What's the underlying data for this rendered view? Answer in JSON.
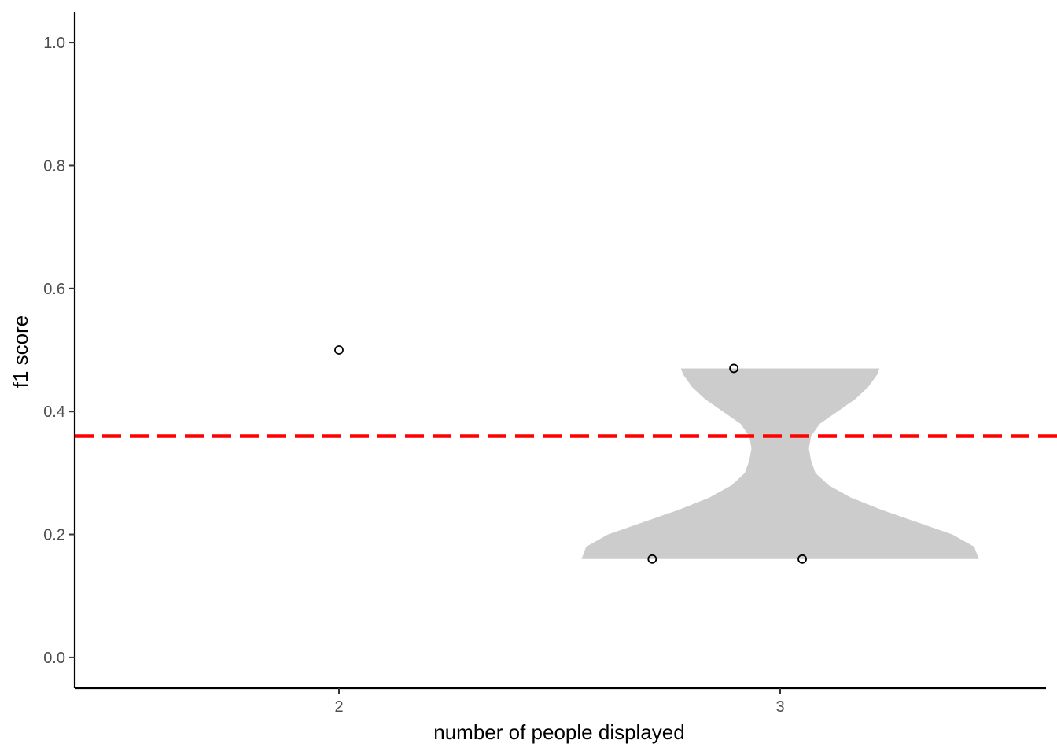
{
  "chart_data": {
    "type": "violin",
    "title": "",
    "xlabel": "number of people displayed",
    "ylabel": "f1 score",
    "x_categories": [
      "2",
      "3"
    ],
    "y_ticks": [
      "0.0",
      "0.2",
      "0.4",
      "0.6",
      "0.8",
      "1.0"
    ],
    "ylim": [
      -0.05,
      1.05
    ],
    "grid": false,
    "legend": "none",
    "reference_line": {
      "y": 0.36,
      "style": "dashed",
      "color": "#ff0000"
    },
    "violins": [
      {
        "category": "3",
        "fill": "#cccccc",
        "y_min": 0.16,
        "y_max": 0.47,
        "profile": [
          [
            0.16,
            0.45
          ],
          [
            0.18,
            0.44
          ],
          [
            0.2,
            0.39
          ],
          [
            0.22,
            0.31
          ],
          [
            0.24,
            0.23
          ],
          [
            0.26,
            0.16
          ],
          [
            0.28,
            0.11
          ],
          [
            0.3,
            0.08
          ],
          [
            0.32,
            0.07
          ],
          [
            0.34,
            0.065
          ],
          [
            0.36,
            0.07
          ],
          [
            0.38,
            0.09
          ],
          [
            0.4,
            0.13
          ],
          [
            0.42,
            0.17
          ],
          [
            0.44,
            0.2
          ],
          [
            0.46,
            0.22
          ],
          [
            0.47,
            0.225
          ]
        ]
      }
    ],
    "points": [
      {
        "category": "2",
        "x_offset": 0.0,
        "y": 0.5
      },
      {
        "category": "3",
        "x_offset": -0.105,
        "y": 0.47
      },
      {
        "category": "3",
        "x_offset": -0.29,
        "y": 0.16
      },
      {
        "category": "3",
        "x_offset": 0.05,
        "y": 0.16
      }
    ]
  }
}
